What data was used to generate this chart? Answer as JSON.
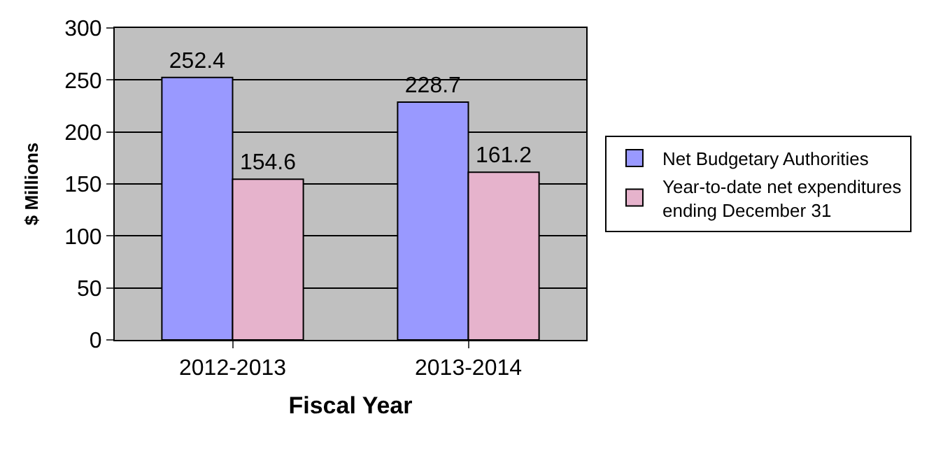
{
  "chart_data": {
    "type": "bar",
    "xlabel": "Fiscal Year",
    "ylabel": "$ Millions",
    "categories": [
      "2012-2013",
      "2013-2014"
    ],
    "series": [
      {
        "name": "Net Budgetary Authorities",
        "color": "#9999ff",
        "values": [
          252.4,
          228.7
        ]
      },
      {
        "name": "Year-to-date net expenditures\nending December 31",
        "color": "#e6b3cc",
        "values": [
          154.6,
          161.2
        ]
      }
    ],
    "ylim": [
      0,
      300
    ],
    "yticks": [
      0,
      50,
      100,
      150,
      200,
      250,
      300
    ],
    "grid": "y",
    "legend": "right",
    "data_labels": true
  }
}
